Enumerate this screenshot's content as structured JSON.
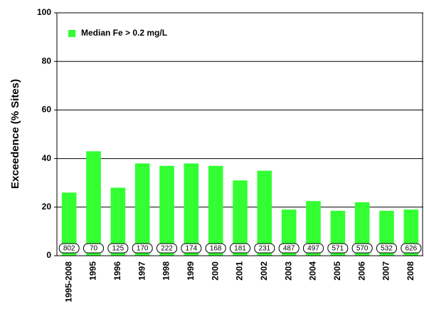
{
  "chart_data": {
    "type": "bar",
    "ylabel": "Exceedence (% Sites)",
    "categories": [
      "1995-2008",
      "1995",
      "1996",
      "1997",
      "1998",
      "1999",
      "2000",
      "2001",
      "2002",
      "2003",
      "2004",
      "2005",
      "2006",
      "2007",
      "2008"
    ],
    "series": [
      {
        "name": "Median Fe > 0.2 mg/L",
        "color": "#33ff33",
        "values": [
          26,
          43,
          28,
          38,
          37,
          38,
          37,
          31,
          35,
          19,
          22.5,
          18.5,
          22,
          18.5,
          19
        ]
      }
    ],
    "counts": [
      802,
      70,
      125,
      170,
      222,
      174,
      168,
      181,
      231,
      487,
      497,
      571,
      570,
      532,
      626
    ],
    "ylim": [
      0,
      100
    ],
    "yticks": [
      0,
      20,
      40,
      60,
      80,
      100
    ],
    "grid": true,
    "legend": "upper left"
  }
}
